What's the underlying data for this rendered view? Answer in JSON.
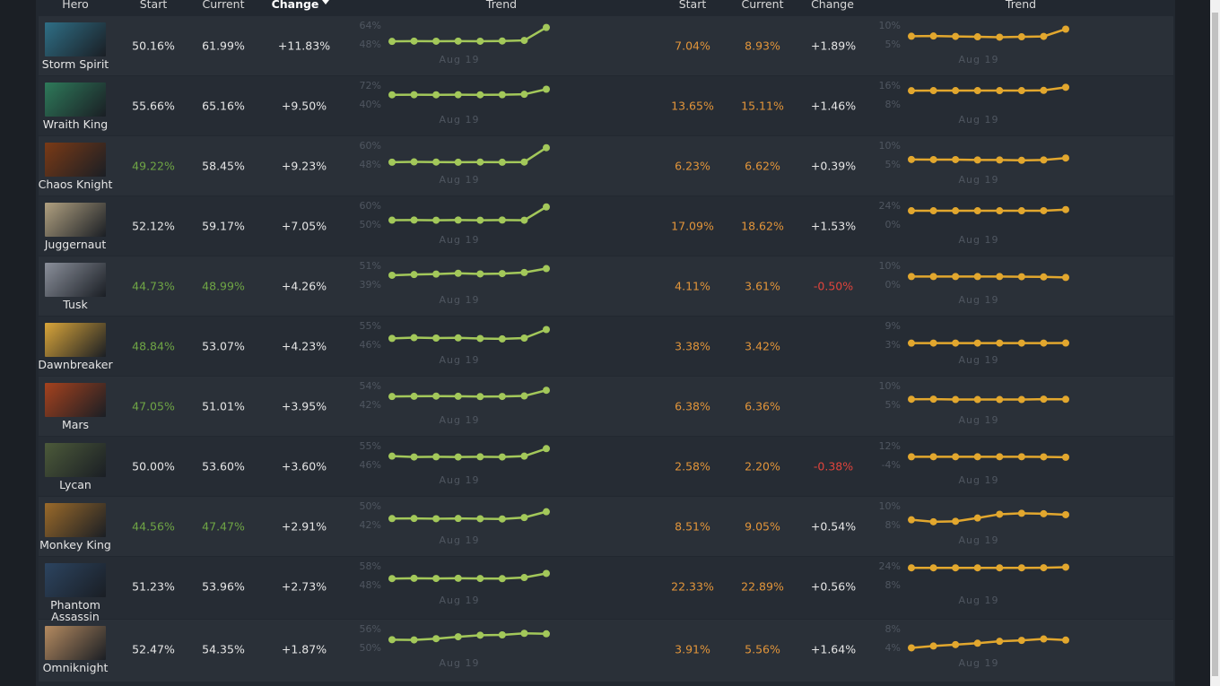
{
  "header": {
    "columns": [
      "Hero",
      "Start",
      "Current",
      "Change",
      "Trend",
      "Start",
      "Current",
      "Change",
      "Trend"
    ]
  },
  "rows": [
    {
      "hero": "Storm Spirit",
      "win": {
        "start": "50.16%",
        "current": "61.99%",
        "change": "+11.83%",
        "trend": {
          "ticks": [
            {
              "value": 64,
              "label": "64%"
            },
            {
              "value": 48,
              "label": "48%"
            }
          ],
          "x": "Aug 19",
          "values": [
            50.16,
            50.4,
            50.3,
            50.4,
            50.3,
            50.5,
            51.0,
            61.99
          ]
        }
      },
      "pick": {
        "start": "7.04%",
        "current": "8.93%",
        "change": "+1.89%",
        "trend": {
          "ticks": [
            {
              "value": 10,
              "label": "10%"
            },
            {
              "value": 5,
              "label": "5%"
            }
          ],
          "x": "Aug 19",
          "values": [
            7.04,
            7.1,
            7.0,
            6.9,
            6.8,
            6.9,
            7.0,
            8.93
          ]
        }
      }
    },
    {
      "hero": "Wraith King",
      "win": {
        "start": "55.66%",
        "current": "65.16%",
        "change": "+9.50%",
        "trend": {
          "ticks": [
            {
              "value": 72,
              "label": "72%"
            },
            {
              "value": 40,
              "label": "40%"
            }
          ],
          "x": "Aug 19",
          "values": [
            55.66,
            55.8,
            55.7,
            55.8,
            55.7,
            55.8,
            56.5,
            65.16
          ]
        }
      },
      "pick": {
        "start": "13.65%",
        "current": "15.11%",
        "change": "+1.46%",
        "trend": {
          "ticks": [
            {
              "value": 16,
              "label": "16%"
            },
            {
              "value": 8,
              "label": "8%"
            }
          ],
          "x": "Aug 19",
          "values": [
            13.65,
            13.7,
            13.7,
            13.7,
            13.7,
            13.7,
            13.8,
            15.11
          ]
        }
      }
    },
    {
      "hero": "Chaos Knight",
      "win": {
        "start": "49.22%",
        "current": "58.45%",
        "change": "+9.23%",
        "trend": {
          "ticks": [
            {
              "value": 60,
              "label": "60%"
            },
            {
              "value": 48,
              "label": "48%"
            }
          ],
          "x": "Aug 19",
          "values": [
            49.22,
            49.4,
            49.3,
            49.2,
            49.3,
            49.2,
            49.3,
            58.45
          ]
        }
      },
      "pick": {
        "start": "6.23%",
        "current": "6.62%",
        "change": "+0.39%",
        "trend": {
          "ticks": [
            {
              "value": 10,
              "label": "10%"
            },
            {
              "value": 5,
              "label": "5%"
            }
          ],
          "x": "Aug 19",
          "values": [
            6.23,
            6.2,
            6.2,
            6.1,
            6.1,
            6.0,
            6.1,
            6.62
          ]
        }
      }
    },
    {
      "hero": "Juggernaut",
      "win": {
        "start": "52.12%",
        "current": "59.17%",
        "change": "+7.05%",
        "trend": {
          "ticks": [
            {
              "value": 60,
              "label": "60%"
            },
            {
              "value": 50,
              "label": "50%"
            }
          ],
          "x": "Aug 19",
          "values": [
            52.12,
            52.2,
            52.1,
            52.2,
            52.1,
            52.2,
            52.1,
            59.17
          ]
        }
      },
      "pick": {
        "start": "17.09%",
        "current": "18.62%",
        "change": "+1.53%",
        "trend": {
          "ticks": [
            {
              "value": 24,
              "label": "24%"
            },
            {
              "value": 0,
              "label": "0%"
            }
          ],
          "x": "Aug 19",
          "values": [
            17.09,
            17.1,
            17.1,
            17.1,
            17.1,
            17.1,
            17.2,
            18.62
          ]
        }
      }
    },
    {
      "hero": "Tusk",
      "win": {
        "start": "44.73%",
        "current": "48.99%",
        "change": "+4.26%",
        "trend": {
          "ticks": [
            {
              "value": 51,
              "label": "51%"
            },
            {
              "value": 39,
              "label": "39%"
            }
          ],
          "x": "Aug 19",
          "values": [
            44.73,
            45.2,
            45.5,
            46.0,
            45.6,
            45.8,
            46.5,
            48.99
          ]
        }
      },
      "pick": {
        "start": "4.11%",
        "current": "3.61%",
        "change": "-0.50%",
        "trend": {
          "ticks": [
            {
              "value": 10,
              "label": "10%"
            },
            {
              "value": 0,
              "label": "0%"
            }
          ],
          "x": "Aug 19",
          "values": [
            4.11,
            4.1,
            4.1,
            4.1,
            4.1,
            4.0,
            3.9,
            3.61
          ]
        }
      }
    },
    {
      "hero": "Dawnbreaker",
      "win": {
        "start": "48.84%",
        "current": "53.07%",
        "change": "+4.23%",
        "trend": {
          "ticks": [
            {
              "value": 55,
              "label": "55%"
            },
            {
              "value": 46,
              "label": "46%"
            }
          ],
          "x": "Aug 19",
          "values": [
            48.84,
            49.2,
            49.0,
            49.1,
            48.8,
            48.6,
            49.0,
            53.07
          ]
        }
      },
      "pick": {
        "start": "3.38%",
        "current": "3.42%",
        "change": null,
        "trend": {
          "ticks": [
            {
              "value": 9,
              "label": "9%"
            },
            {
              "value": 3,
              "label": "3%"
            }
          ],
          "x": "Aug 19",
          "values": [
            3.38,
            3.4,
            3.4,
            3.4,
            3.4,
            3.4,
            3.4,
            3.42
          ]
        }
      }
    },
    {
      "hero": "Mars",
      "win": {
        "start": "47.05%",
        "current": "51.01%",
        "change": "+3.95%",
        "trend": {
          "ticks": [
            {
              "value": 54,
              "label": "54%"
            },
            {
              "value": 42,
              "label": "42%"
            }
          ],
          "x": "Aug 19",
          "values": [
            47.05,
            47.2,
            47.3,
            47.2,
            47.0,
            47.1,
            47.4,
            51.01
          ]
        }
      },
      "pick": {
        "start": "6.38%",
        "current": "6.36%",
        "change": null,
        "trend": {
          "ticks": [
            {
              "value": 10,
              "label": "10%"
            },
            {
              "value": 5,
              "label": "5%"
            }
          ],
          "x": "Aug 19",
          "values": [
            6.38,
            6.4,
            6.3,
            6.3,
            6.3,
            6.3,
            6.4,
            6.36
          ]
        }
      }
    },
    {
      "hero": "Lycan",
      "win": {
        "start": "50.00%",
        "current": "53.60%",
        "change": "+3.60%",
        "trend": {
          "ticks": [
            {
              "value": 55,
              "label": "55%"
            },
            {
              "value": 46,
              "label": "46%"
            }
          ],
          "x": "Aug 19",
          "values": [
            50.0,
            49.6,
            49.7,
            49.6,
            49.7,
            49.6,
            50.0,
            53.6
          ]
        }
      },
      "pick": {
        "start": "2.58%",
        "current": "2.20%",
        "change": "-0.38%",
        "trend": {
          "ticks": [
            {
              "value": 12,
              "label": "12%"
            },
            {
              "value": -4,
              "label": "-4%"
            }
          ],
          "x": "Aug 19",
          "values": [
            2.58,
            2.6,
            2.6,
            2.6,
            2.6,
            2.6,
            2.5,
            2.2
          ]
        }
      }
    },
    {
      "hero": "Monkey King",
      "win": {
        "start": "44.56%",
        "current": "47.47%",
        "change": "+2.91%",
        "trend": {
          "ticks": [
            {
              "value": 50,
              "label": "50%"
            },
            {
              "value": 42,
              "label": "42%"
            }
          ],
          "x": "Aug 19",
          "values": [
            44.56,
            44.6,
            44.5,
            44.6,
            44.5,
            44.4,
            45.0,
            47.47
          ]
        }
      },
      "pick": {
        "start": "8.51%",
        "current": "9.05%",
        "change": "+0.54%",
        "trend": {
          "ticks": [
            {
              "value": 10,
              "label": "10%"
            },
            {
              "value": 8,
              "label": "8%"
            }
          ],
          "x": "Aug 19",
          "values": [
            8.51,
            8.3,
            8.35,
            8.7,
            9.1,
            9.2,
            9.15,
            9.05
          ]
        }
      }
    },
    {
      "hero": "Phantom Assassin",
      "win": {
        "start": "51.23%",
        "current": "53.96%",
        "change": "+2.73%",
        "trend": {
          "ticks": [
            {
              "value": 58,
              "label": "58%"
            },
            {
              "value": 48,
              "label": "48%"
            }
          ],
          "x": "Aug 19",
          "values": [
            51.23,
            51.4,
            51.3,
            51.4,
            51.3,
            51.2,
            51.8,
            53.96
          ]
        }
      },
      "pick": {
        "start": "22.33%",
        "current": "22.89%",
        "change": "+0.56%",
        "trend": {
          "ticks": [
            {
              "value": 24,
              "label": "24%"
            },
            {
              "value": 8,
              "label": "8%"
            }
          ],
          "x": "Aug 19",
          "values": [
            22.33,
            22.3,
            22.3,
            22.3,
            22.3,
            22.3,
            22.4,
            22.89
          ]
        }
      }
    },
    {
      "hero": "Omniknight",
      "win": {
        "start": "52.47%",
        "current": "54.35%",
        "change": "+1.87%",
        "trend": {
          "ticks": [
            {
              "value": 56,
              "label": "56%"
            },
            {
              "value": 50,
              "label": "50%"
            }
          ],
          "x": "Aug 19",
          "values": [
            52.47,
            52.4,
            52.8,
            53.4,
            53.9,
            54.0,
            54.5,
            54.35
          ]
        }
      },
      "pick": {
        "start": "3.91%",
        "current": "5.56%",
        "change": "+1.64%",
        "trend": {
          "ticks": [
            {
              "value": 8,
              "label": "8%"
            },
            {
              "value": 4,
              "label": "4%"
            }
          ],
          "x": "Aug 19",
          "values": [
            3.91,
            4.3,
            4.6,
            4.9,
            5.3,
            5.5,
            5.8,
            5.56
          ]
        }
      }
    }
  ]
}
